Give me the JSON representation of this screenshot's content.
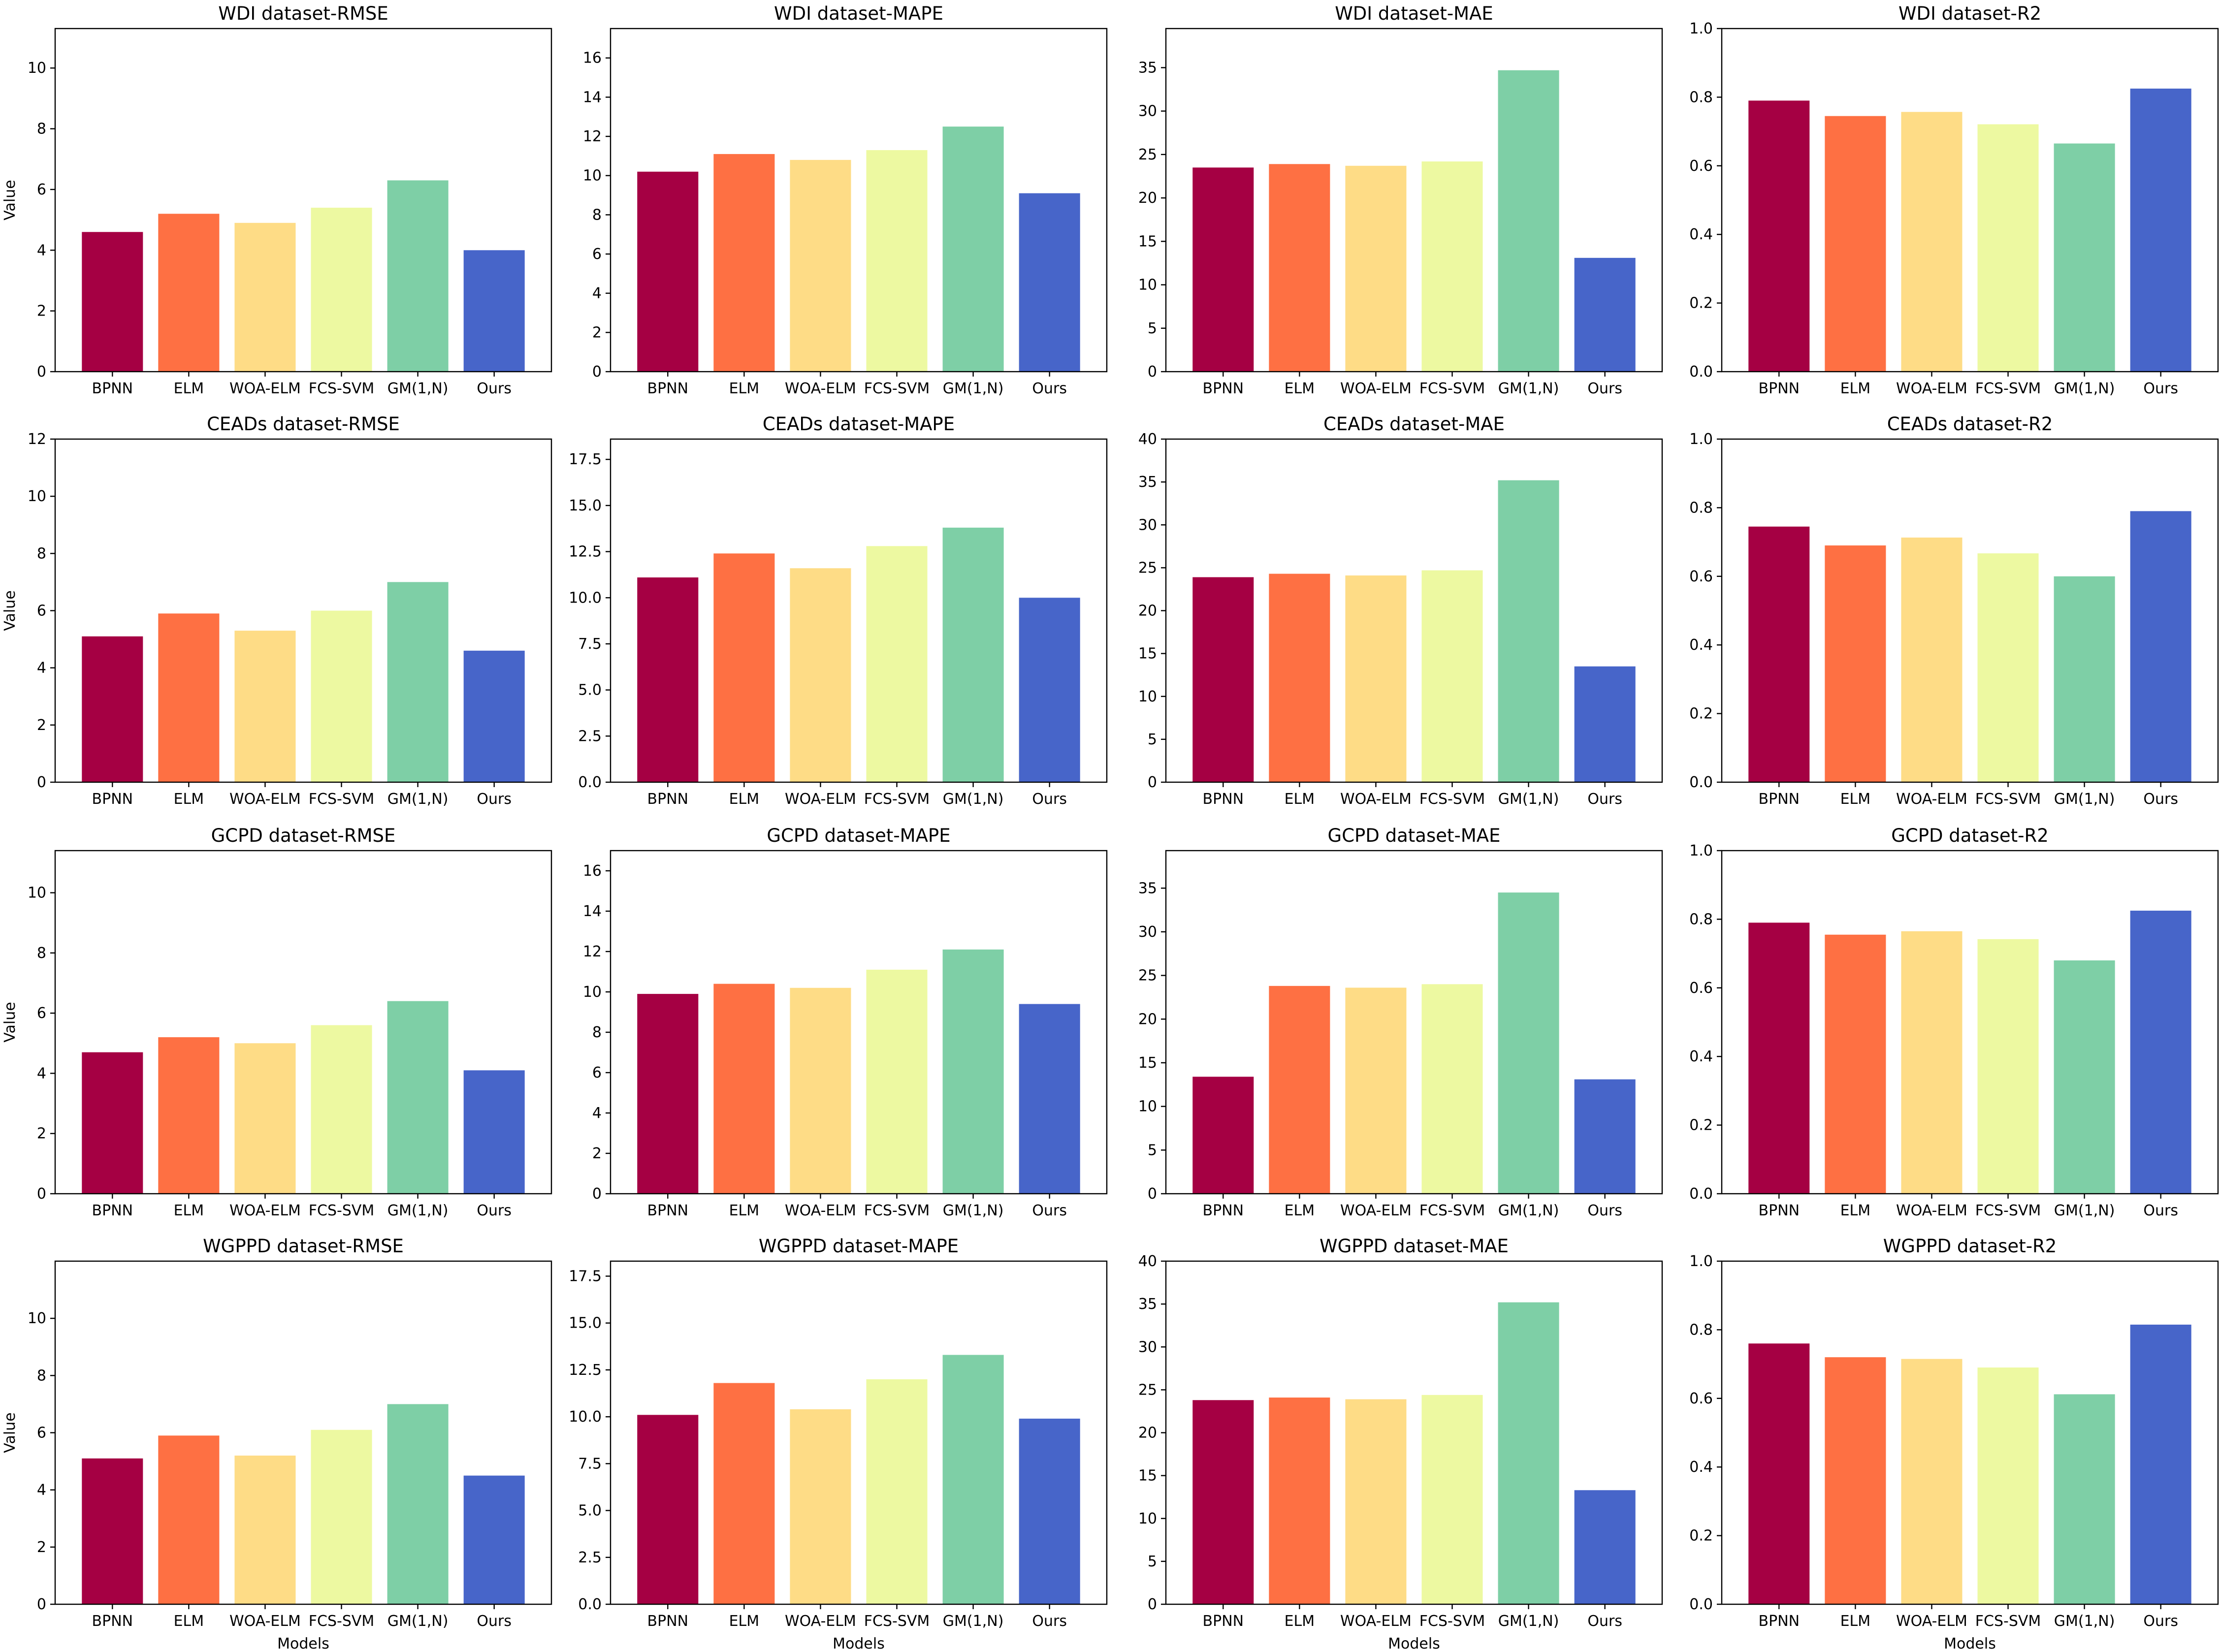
{
  "figure": {
    "categories": [
      "BPNN",
      "ELM",
      "WOA-ELM",
      "FCS-SVM",
      "GM(1,N)",
      "Ours"
    ],
    "colors": [
      "#a50043",
      "#fe7043",
      "#fedc86",
      "#edf9a1",
      "#7ecfa6",
      "#4765c9"
    ],
    "xlabel": "Models",
    "ylabel": "Value"
  },
  "chart_data": [
    {
      "type": "bar",
      "title": "WDI dataset-RMSE",
      "values": [
        4.6,
        5.2,
        4.9,
        5.4,
        6.3,
        4.0
      ],
      "ylim": [
        0,
        11.3
      ],
      "yticks": [
        0,
        2,
        4,
        6,
        8,
        10
      ],
      "yticklabels": [
        "0",
        "2",
        "4",
        "6",
        "8",
        "10"
      ]
    },
    {
      "type": "bar",
      "title": "WDI dataset-MAPE",
      "values": [
        10.2,
        11.1,
        10.8,
        11.3,
        12.5,
        9.1
      ],
      "ylim": [
        0,
        17.5
      ],
      "yticks": [
        0,
        2,
        4,
        6,
        8,
        10,
        12,
        14,
        16
      ],
      "yticklabels": [
        "0",
        "2",
        "4",
        "6",
        "8",
        "10",
        "12",
        "14",
        "16"
      ]
    },
    {
      "type": "bar",
      "title": "WDI dataset-MAE",
      "values": [
        23.5,
        23.9,
        23.7,
        24.2,
        34.7,
        13.1
      ],
      "ylim": [
        0,
        39.5
      ],
      "yticks": [
        0,
        5,
        10,
        15,
        20,
        25,
        30,
        35
      ],
      "yticklabels": [
        "0",
        "5",
        "10",
        "15",
        "20",
        "25",
        "30",
        "35"
      ]
    },
    {
      "type": "bar",
      "title": "WDI dataset-R2",
      "values": [
        0.79,
        0.745,
        0.757,
        0.721,
        0.665,
        0.825
      ],
      "ylim": [
        0,
        1.0
      ],
      "yticks": [
        0,
        0.2,
        0.4,
        0.6,
        0.8,
        1.0
      ],
      "yticklabels": [
        "0.0",
        "0.2",
        "0.4",
        "0.6",
        "0.8",
        "1.0"
      ]
    },
    {
      "type": "bar",
      "title": "CEADs dataset-RMSE",
      "values": [
        5.1,
        5.9,
        5.3,
        6.0,
        7.0,
        4.6
      ],
      "ylim": [
        0,
        12
      ],
      "yticks": [
        0,
        2,
        4,
        6,
        8,
        10,
        12
      ],
      "yticklabels": [
        "0",
        "2",
        "4",
        "6",
        "8",
        "10",
        "12"
      ]
    },
    {
      "type": "bar",
      "title": "CEADs dataset-MAPE",
      "values": [
        11.1,
        12.4,
        11.6,
        12.8,
        13.8,
        10.0
      ],
      "ylim": [
        0,
        18.6
      ],
      "yticks": [
        0,
        2.5,
        5,
        7.5,
        10,
        12.5,
        15,
        17.5
      ],
      "yticklabels": [
        "0.0",
        "2.5",
        "5.0",
        "7.5",
        "10.0",
        "12.5",
        "15.0",
        "17.5"
      ]
    },
    {
      "type": "bar",
      "title": "CEADs dataset-MAE",
      "values": [
        23.9,
        24.3,
        24.1,
        24.7,
        35.2,
        13.5
      ],
      "ylim": [
        0,
        40
      ],
      "yticks": [
        0,
        5,
        10,
        15,
        20,
        25,
        30,
        35,
        40
      ],
      "yticklabels": [
        "0",
        "5",
        "10",
        "15",
        "20",
        "25",
        "30",
        "35",
        "40"
      ]
    },
    {
      "type": "bar",
      "title": "CEADs dataset-R2",
      "values": [
        0.745,
        0.69,
        0.713,
        0.667,
        0.6,
        0.79
      ],
      "ylim": [
        0,
        1.0
      ],
      "yticks": [
        0,
        0.2,
        0.4,
        0.6,
        0.8,
        1.0
      ],
      "yticklabels": [
        "0.0",
        "0.2",
        "0.4",
        "0.6",
        "0.8",
        "1.0"
      ]
    },
    {
      "type": "bar",
      "title": "GCPD dataset-RMSE",
      "values": [
        4.7,
        5.2,
        5.0,
        5.6,
        6.4,
        4.1
      ],
      "ylim": [
        0,
        11.4
      ],
      "yticks": [
        0,
        2,
        4,
        6,
        8,
        10
      ],
      "yticklabels": [
        "0",
        "2",
        "4",
        "6",
        "8",
        "10"
      ]
    },
    {
      "type": "bar",
      "title": "GCPD dataset-MAPE",
      "values": [
        9.9,
        10.4,
        10.2,
        11.1,
        12.1,
        9.4
      ],
      "ylim": [
        0,
        17
      ],
      "yticks": [
        0,
        2,
        4,
        6,
        8,
        10,
        12,
        14,
        16
      ],
      "yticklabels": [
        "0",
        "2",
        "4",
        "6",
        "8",
        "10",
        "12",
        "14",
        "16"
      ]
    },
    {
      "type": "bar",
      "title": "GCPD dataset-MAE",
      "values": [
        13.4,
        23.8,
        23.6,
        24.0,
        34.5,
        13.1
      ],
      "ylim": [
        0,
        39.3
      ],
      "yticks": [
        0,
        5,
        10,
        15,
        20,
        25,
        30,
        35
      ],
      "yticklabels": [
        "0",
        "5",
        "10",
        "15",
        "20",
        "25",
        "30",
        "35"
      ]
    },
    {
      "type": "bar",
      "title": "GCPD dataset-R2",
      "values": [
        0.79,
        0.755,
        0.765,
        0.742,
        0.68,
        0.825
      ],
      "ylim": [
        0,
        1.0
      ],
      "yticks": [
        0,
        0.2,
        0.4,
        0.6,
        0.8,
        1.0
      ],
      "yticklabels": [
        "0.0",
        "0.2",
        "0.4",
        "0.6",
        "0.8",
        "1.0"
      ]
    },
    {
      "type": "bar",
      "title": "WGPPD dataset-RMSE",
      "values": [
        5.1,
        5.9,
        5.2,
        6.1,
        7.0,
        4.5
      ],
      "ylim": [
        0,
        12
      ],
      "yticks": [
        0,
        2,
        4,
        6,
        8,
        10
      ],
      "yticklabels": [
        "0",
        "2",
        "4",
        "6",
        "8",
        "10"
      ]
    },
    {
      "type": "bar",
      "title": "WGPPD dataset-MAPE",
      "values": [
        10.1,
        11.8,
        10.4,
        12.0,
        13.3,
        9.9
      ],
      "ylim": [
        0,
        18.3
      ],
      "yticks": [
        0,
        2.5,
        5,
        7.5,
        10,
        12.5,
        15,
        17.5
      ],
      "yticklabels": [
        "0.0",
        "2.5",
        "5.0",
        "7.5",
        "10.0",
        "12.5",
        "15.0",
        "17.5"
      ]
    },
    {
      "type": "bar",
      "title": "WGPPD dataset-MAE",
      "values": [
        23.8,
        24.1,
        23.9,
        24.4,
        35.2,
        13.3
      ],
      "ylim": [
        0,
        40
      ],
      "yticks": [
        0,
        5,
        10,
        15,
        20,
        25,
        30,
        35,
        40
      ],
      "yticklabels": [
        "0",
        "5",
        "10",
        "15",
        "20",
        "25",
        "30",
        "35",
        "40"
      ]
    },
    {
      "type": "bar",
      "title": "WGPPD dataset-R2",
      "values": [
        0.76,
        0.72,
        0.715,
        0.69,
        0.612,
        0.815
      ],
      "ylim": [
        0,
        1.0
      ],
      "yticks": [
        0,
        0.2,
        0.4,
        0.6,
        0.8,
        1.0
      ],
      "yticklabels": [
        "0.0",
        "0.2",
        "0.4",
        "0.6",
        "0.8",
        "1.0"
      ]
    }
  ]
}
